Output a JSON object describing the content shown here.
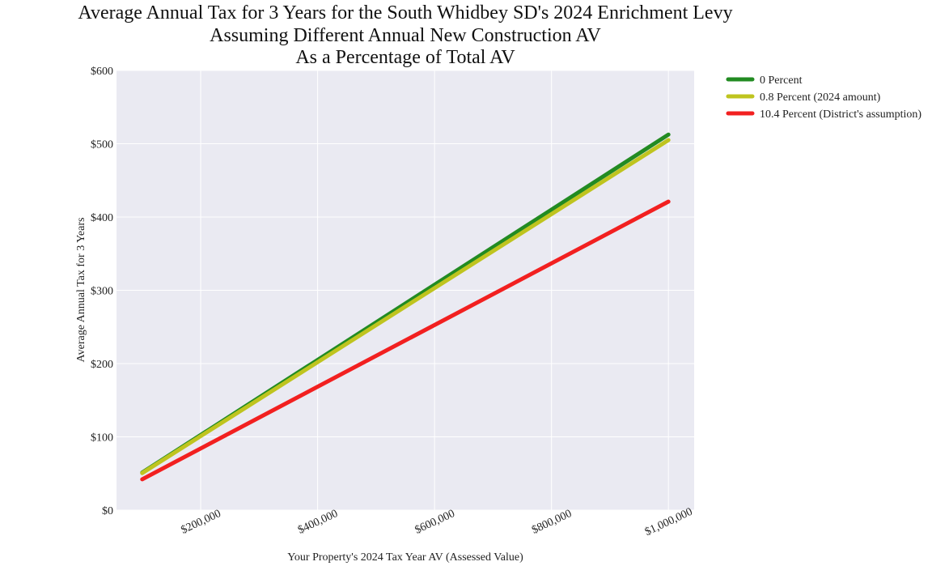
{
  "chart_data": {
    "type": "line",
    "title_lines": [
      "Average Annual Tax for 3 Years for the South Whidbey SD's 2024 Enrichment Levy",
      "Assuming Different Annual New Construction AV",
      "As a Percentage of Total AV"
    ],
    "xlabel": "Your Property's 2024 Tax Year AV (Assessed Value)",
    "ylabel": "Average Annual Tax for 3 Years",
    "xlim": [
      56000,
      1044000
    ],
    "ylim": [
      0,
      600
    ],
    "x_ticks": [
      200000,
      400000,
      600000,
      800000,
      1000000
    ],
    "x_tick_labels": [
      "$200,000",
      "$400,000",
      "$600,000",
      "$800,000",
      "$1,000,000"
    ],
    "y_ticks": [
      0,
      100,
      200,
      300,
      400,
      500,
      600
    ],
    "y_tick_labels": [
      "$0",
      "$100",
      "$200",
      "$300",
      "$400",
      "$500",
      "$600"
    ],
    "grid": true,
    "legend_position": "outside-top-right",
    "background": "#eaeaf2",
    "series": [
      {
        "name": "0 Percent",
        "color": "#228b22",
        "x": [
          100000,
          1000000
        ],
        "y": [
          51.3,
          512.5
        ]
      },
      {
        "name": "0.8 Percent (2024 amount)",
        "color": "#bfc41f",
        "x": [
          100000,
          1000000
        ],
        "y": [
          50.5,
          505
        ]
      },
      {
        "name": "10.4 Percent (District's assumption)",
        "color": "#f22020",
        "x": [
          100000,
          1000000
        ],
        "y": [
          42.1,
          421
        ]
      }
    ]
  }
}
